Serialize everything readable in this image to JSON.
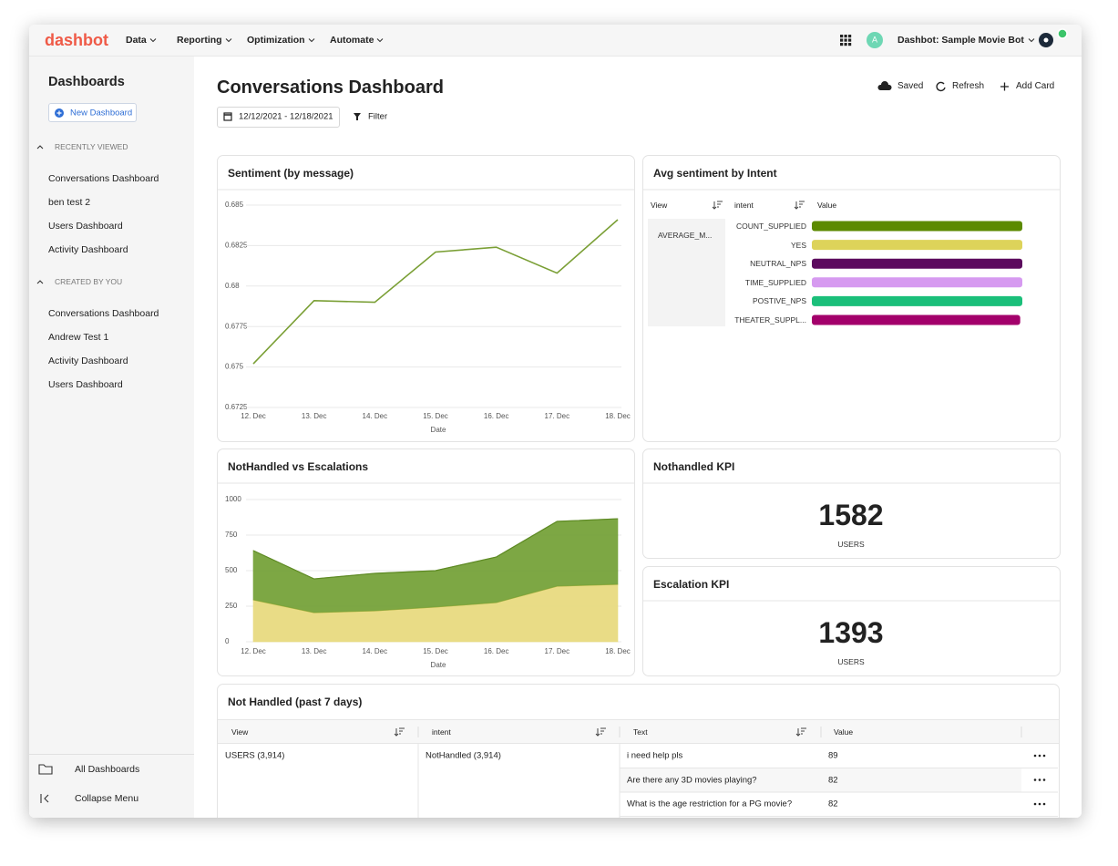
{
  "nav": {
    "logo": "dashbot",
    "menu": [
      "Data",
      "Reporting",
      "Optimization",
      "Automate"
    ],
    "avatar": "A",
    "account": "Dashbot: Sample Movie Bot"
  },
  "sidebar": {
    "title": "Dashboards",
    "new_button": "New Dashboard",
    "sections": [
      {
        "label": "RECENTLY VIEWED",
        "items": [
          "Conversations Dashboard",
          "ben test 2",
          "Users Dashboard",
          "Activity Dashboard"
        ]
      },
      {
        "label": "CREATED BY YOU",
        "items": [
          "Conversations Dashboard",
          "Andrew Test 1",
          "Activity Dashboard",
          "Users Dashboard"
        ]
      }
    ],
    "footer": [
      "All Dashboards",
      "Collapse Menu"
    ]
  },
  "header": {
    "title": "Conversations Dashboard",
    "date_range": "12/12/2021 - 12/18/2021",
    "filter": "Filter",
    "actions": [
      "Saved",
      "Refresh",
      "Add Card"
    ]
  },
  "chart_data": [
    {
      "type": "line",
      "title": "Sentiment (by message)",
      "x_label": "Date",
      "categories": [
        "12. Dec",
        "13. Dec",
        "14. Dec",
        "15. Dec",
        "16. Dec",
        "17. Dec",
        "18. Dec"
      ],
      "values": [
        0.6752,
        0.6791,
        0.679,
        0.6821,
        0.6824,
        0.6808,
        0.6841
      ],
      "color": "#7a9f35",
      "ylim": [
        0.6725,
        0.685
      ],
      "yticks": [
        0.6725,
        0.675,
        0.6775,
        0.68,
        0.6825,
        0.685
      ],
      "grid": true
    },
    {
      "type": "bar",
      "title": "Avg sentiment by Intent",
      "columns": [
        "View",
        "intent",
        "Value"
      ],
      "view": "AVERAGE_M...",
      "categories": [
        "COUNT_SUPPLIED",
        "YES",
        "NEUTRAL_NPS",
        "TIME_SUPPLIED",
        "POSTIVE_NPS",
        "THEATER_SUPPL..."
      ],
      "values": [
        1,
        1,
        1,
        1,
        1,
        0.99
      ],
      "xlim": [
        0,
        1
      ],
      "colors": [
        "#5c8a00",
        "#ddd35a",
        "#5c0a5e",
        "#d69af0",
        "#1bbf7a",
        "#a3006b"
      ]
    },
    {
      "type": "area",
      "title": "NotHandled vs Escalations",
      "x_label": "Date",
      "categories": [
        "12. Dec",
        "13. Dec",
        "14. Dec",
        "15. Dec",
        "16. Dec",
        "17. Dec",
        "18. Dec"
      ],
      "series": [
        {
          "color": "#e8da7f",
          "values": [
            295,
            205,
            218,
            244,
            276,
            391,
            404
          ]
        },
        {
          "color": "#76a23a",
          "values": [
            346,
            237,
            263,
            256,
            320,
            455,
            461
          ]
        }
      ],
      "stacked": true,
      "ylim": [
        0,
        1000
      ],
      "yticks": [
        0,
        250,
        500,
        750,
        1000
      ],
      "grid": true
    }
  ],
  "kpis": [
    {
      "title": "Nothandled KPI",
      "value": 1582,
      "unit": "USERS"
    },
    {
      "title": "Escalation KPI",
      "value": 1393,
      "unit": "USERS"
    }
  ],
  "table": {
    "title": "Not Handled (past 7 days)",
    "columns": [
      "View",
      "intent",
      "Text",
      "Value"
    ],
    "view": "USERS (3,914)",
    "intent": "NotHandled (3,914)",
    "rows": [
      [
        "i need help pls",
        89
      ],
      [
        "Are there any 3D movies playing?",
        82
      ],
      [
        "What is the age restriction for a PG movie?",
        82
      ]
    ]
  }
}
